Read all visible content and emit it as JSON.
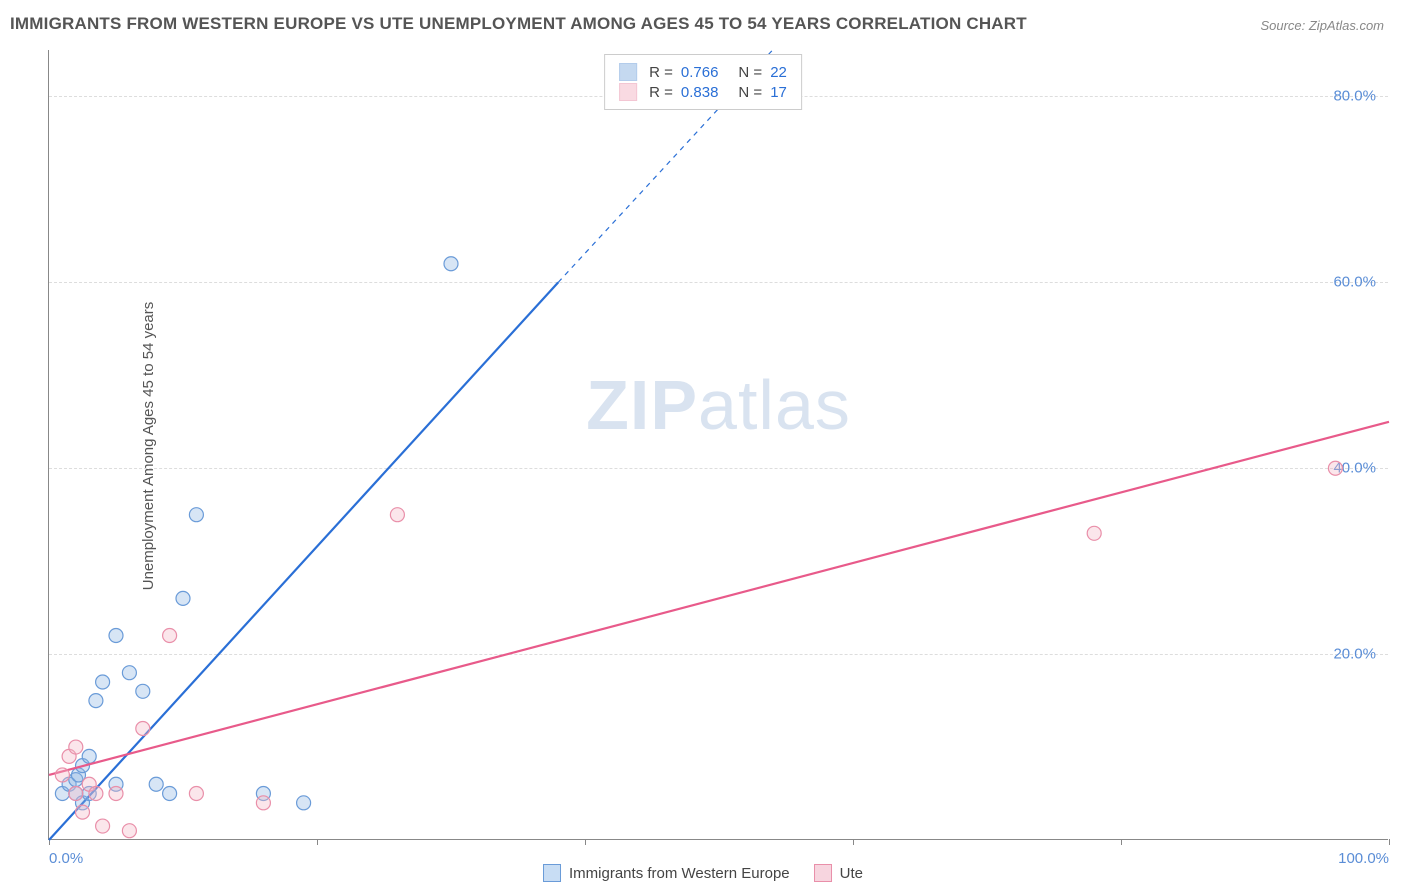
{
  "title": "IMMIGRANTS FROM WESTERN EUROPE VS UTE UNEMPLOYMENT AMONG AGES 45 TO 54 YEARS CORRELATION CHART",
  "source": "Source: ZipAtlas.com",
  "y_axis_label": "Unemployment Among Ages 45 to 54 years",
  "watermark_a": "ZIP",
  "watermark_b": "atlas",
  "chart": {
    "type": "scatter",
    "xlim": [
      0,
      100
    ],
    "ylim": [
      0,
      85
    ],
    "x_ticks": [
      0,
      20,
      40,
      60,
      80,
      100
    ],
    "x_tick_labels": [
      "0.0%",
      "",
      "",
      "",
      "",
      "100.0%"
    ],
    "y_ticks": [
      20,
      40,
      60,
      80
    ],
    "y_tick_labels": [
      "20.0%",
      "40.0%",
      "60.0%",
      "80.0%"
    ],
    "grid_color": "#dddddd",
    "axis_color": "#888888",
    "background_color": "#ffffff",
    "tick_label_color": "#5a8dd6",
    "marker_radius": 7,
    "marker_stroke_width": 1.2,
    "marker_fill_opacity": 0.35,
    "line_width": 2.2,
    "series": [
      {
        "name": "Immigrants from Western Europe",
        "color": "#8db4e3",
        "stroke": "#6a9bd8",
        "line_color": "#2a6fd6",
        "r": "0.766",
        "n": "22",
        "regression": {
          "x1": 0,
          "y1": 0,
          "x2": 38,
          "y2": 60,
          "dashed_x2": 54,
          "dashed_y2": 85
        },
        "points": [
          [
            1,
            5
          ],
          [
            1.5,
            6
          ],
          [
            2,
            5
          ],
          [
            2,
            6.5
          ],
          [
            2.2,
            7
          ],
          [
            2.5,
            4
          ],
          [
            2.5,
            8
          ],
          [
            3,
            5
          ],
          [
            3,
            9
          ],
          [
            3.5,
            15
          ],
          [
            4,
            17
          ],
          [
            5,
            22
          ],
          [
            5,
            6
          ],
          [
            6,
            18
          ],
          [
            7,
            16
          ],
          [
            8,
            6
          ],
          [
            9,
            5
          ],
          [
            10,
            26
          ],
          [
            11,
            35
          ],
          [
            16,
            5
          ],
          [
            19,
            4
          ],
          [
            30,
            62
          ]
        ]
      },
      {
        "name": "Ute",
        "color": "#f4b6c7",
        "stroke": "#e98fa9",
        "line_color": "#e85a8a",
        "r": "0.838",
        "n": "17",
        "regression": {
          "x1": 0,
          "y1": 7,
          "x2": 100,
          "y2": 45
        },
        "points": [
          [
            1,
            7
          ],
          [
            1.5,
            9
          ],
          [
            2,
            5
          ],
          [
            2,
            10
          ],
          [
            2.5,
            3
          ],
          [
            3,
            6
          ],
          [
            3.5,
            5
          ],
          [
            4,
            1.5
          ],
          [
            5,
            5
          ],
          [
            6,
            1
          ],
          [
            7,
            12
          ],
          [
            9,
            22
          ],
          [
            11,
            5
          ],
          [
            16,
            4
          ],
          [
            26,
            35
          ],
          [
            78,
            33
          ],
          [
            96,
            40
          ]
        ]
      }
    ]
  },
  "legend_bottom": [
    {
      "label": "Immigrants from Western Europe",
      "fill": "#c8ddf4",
      "stroke": "#6a9bd8"
    },
    {
      "label": "Ute",
      "fill": "#f7d5df",
      "stroke": "#e98fa9"
    }
  ]
}
